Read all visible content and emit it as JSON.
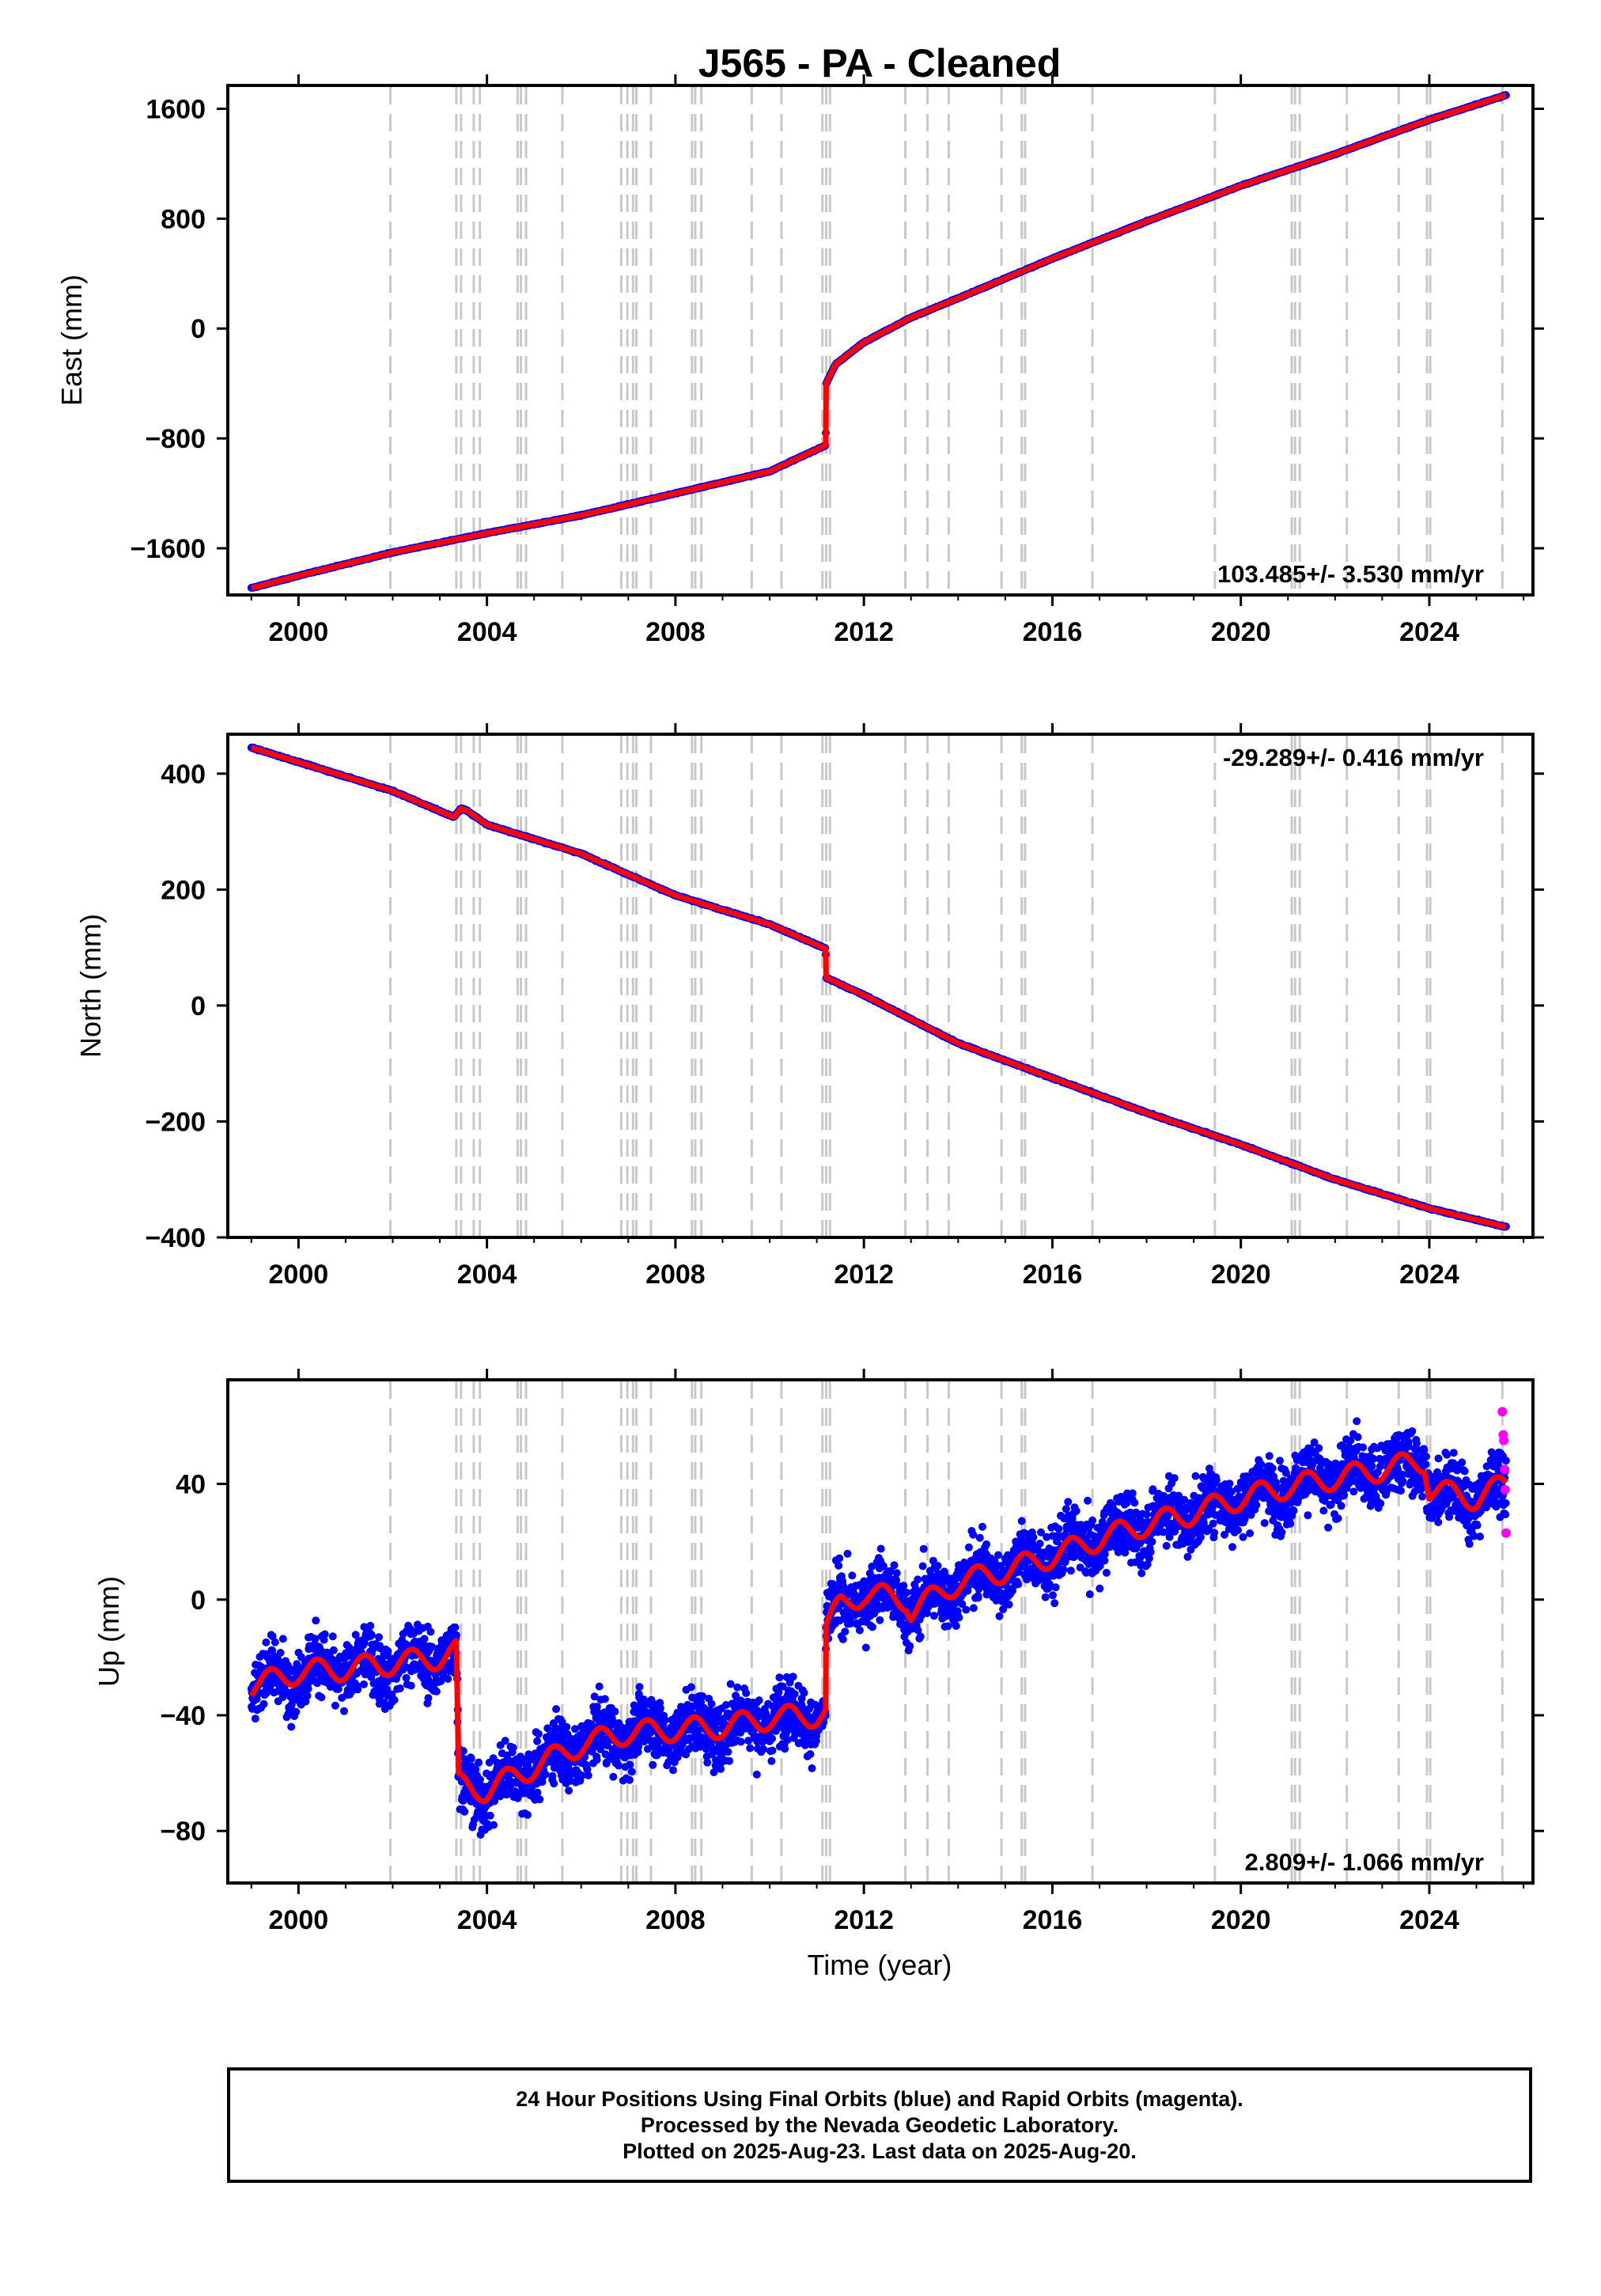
{
  "title": "J565  - PA - Cleaned",
  "x_axis_label": "Time (year)",
  "footer": [
    "24 Hour Positions Using Final Orbits (blue) and Rapid Orbits (magenta).",
    "Processed by the Nevada Geodetic Laboratory.",
    "Plotted on 2025-Aug-23. Last data on 2025-Aug-20."
  ],
  "colors": {
    "final_orbits": "#0000ff",
    "rapid_orbits": "#ff00ff",
    "model": "#ff0000",
    "events": "#c8c8c8"
  },
  "chart_data": [
    {
      "type": "scatter",
      "ylabel": "East (mm)",
      "xlim": [
        1998.5,
        2026.2
      ],
      "ylim": [
        -1940,
        1770
      ],
      "yticks": [
        -1600,
        -800,
        0,
        800,
        1600
      ],
      "xticks": [
        2000,
        2004,
        2008,
        2012,
        2016,
        2020,
        2024
      ],
      "rate_label": "103.485+/- 3.530 mm/yr",
      "rate_position": "bottom-right",
      "data_span": [
        1999.0,
        2025.63
      ],
      "series": [
        {
          "name": "Final Orbits",
          "x": [
            1999.0,
            2000.0,
            2002.0,
            2004.0,
            2006.0,
            2008.0,
            2010.0,
            2011.19,
            2011.2,
            2011.4,
            2012.0,
            2013.0,
            2014.0,
            2016.0,
            2018.0,
            2020.0,
            2022.0,
            2024.0,
            2025.63
          ],
          "y": [
            -1890,
            -1800,
            -1630,
            -1490,
            -1360,
            -1200,
            -1040,
            -850,
            -400,
            -260,
            -100,
            80,
            220,
            510,
            780,
            1040,
            1270,
            1520,
            1700
          ]
        }
      ],
      "rapid_series": {
        "x": [],
        "y": []
      }
    },
    {
      "type": "scatter",
      "ylabel": "North (mm)",
      "xlim": [
        1998.5,
        2026.2
      ],
      "ylim": [
        -400,
        468
      ],
      "yticks": [
        -400,
        -200,
        0,
        200,
        400
      ],
      "xticks": [
        2000,
        2004,
        2008,
        2012,
        2016,
        2020,
        2024
      ],
      "rate_label": "-29.289+/- 0.416 mm/yr",
      "rate_position": "top-right",
      "data_span": [
        1999.0,
        2025.63
      ],
      "series": [
        {
          "name": "Final Orbits",
          "x": [
            1999.0,
            2000.0,
            2002.0,
            2003.3,
            2003.45,
            2003.6,
            2004.0,
            2006.0,
            2008.0,
            2010.0,
            2011.19,
            2011.2,
            2012.0,
            2014.0,
            2016.0,
            2018.0,
            2020.0,
            2022.0,
            2024.0,
            2025.63
          ],
          "y": [
            445,
            420,
            370,
            325,
            340,
            335,
            312,
            262,
            190,
            140,
            98,
            48,
            18,
            -65,
            -125,
            -185,
            -240,
            -300,
            -350,
            -382
          ]
        }
      ],
      "rapid_series": {
        "x": [],
        "y": []
      }
    },
    {
      "type": "scatter",
      "ylabel": "Up (mm)",
      "xlim": [
        1998.5,
        2026.2
      ],
      "ylim": [
        -98,
        76
      ],
      "yticks": [
        -80,
        -40,
        0,
        40
      ],
      "xticks": [
        2000,
        2004,
        2008,
        2012,
        2016,
        2020,
        2024
      ],
      "rate_label": "2.809+/- 1.066 mm/yr",
      "rate_position": "bottom-right",
      "data_span": [
        1999.0,
        2025.63
      ],
      "series": [
        {
          "name": "Final Orbits",
          "x": [
            1999.0,
            2000.0,
            2001.0,
            2002.0,
            2003.0,
            2003.35,
            2003.4,
            2004.0,
            2004.7,
            2005.0,
            2006.0,
            2007.0,
            2008.0,
            2009.0,
            2010.0,
            2011.0,
            2011.19,
            2011.2,
            2011.5,
            2012.0,
            2012.9,
            2013.0,
            2014.0,
            2015.0,
            2016.0,
            2017.0,
            2018.0,
            2019.0,
            2020.0,
            2021.0,
            2022.0,
            2023.0,
            2023.9,
            2024.0,
            2025.0,
            2025.63
          ],
          "y": [
            -30,
            -25,
            -24,
            -22,
            -20,
            -18,
            -64,
            -66,
            -60,
            -58,
            -50,
            -46,
            -45,
            -44,
            -41,
            -40,
            -39,
            -10,
            -2,
            2,
            0,
            -4,
            6,
            10,
            15,
            21,
            26,
            30,
            35,
            39,
            42,
            45,
            48,
            38,
            35,
            40
          ]
        }
      ],
      "rapid_series": {
        "x": [
          2025.55,
          2025.57,
          2025.58,
          2025.6,
          2025.61,
          2025.63
        ],
        "y": [
          65,
          57,
          55,
          45,
          38,
          23
        ]
      }
    }
  ],
  "event_years": [
    2001.95,
    2003.35,
    2003.45,
    2003.72,
    2003.85,
    2004.65,
    2004.72,
    2004.83,
    2005.6,
    2006.85,
    2006.98,
    2007.1,
    2007.17,
    2007.48,
    2008.35,
    2008.42,
    2008.55,
    2009.62,
    2010.25,
    2011.12,
    2011.2,
    2011.28,
    2012.88,
    2013.35,
    2013.8,
    2014.92,
    2015.35,
    2015.42,
    2016.85,
    2019.45,
    2021.08,
    2021.15,
    2021.25,
    2022.25,
    2023.35,
    2023.95,
    2024.02,
    2025.55
  ]
}
